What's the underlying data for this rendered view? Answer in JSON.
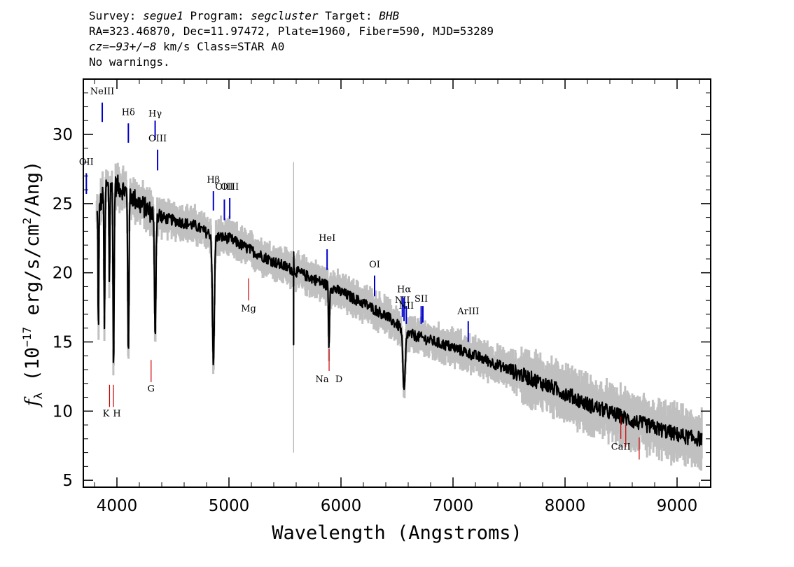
{
  "header": {
    "survey_label": "Survey:",
    "survey": "segue1",
    "program_label": "Program:",
    "program": "segcluster",
    "target_label": "Target:",
    "target": "BHB",
    "coords": "RA=323.46870, Dec=11.97472, Plate=1960, Fiber=590, MJD=53289",
    "cz_prefix": "cz=",
    "cz_value": "−93+/−8",
    "cz_suffix": " km/s Class=STAR A0",
    "warnings": "No warnings."
  },
  "chart_data": {
    "type": "line",
    "xlabel": "Wavelength (Angstroms)",
    "ylabel_main": "f",
    "ylabel_sub": "λ",
    "ylabel_rest_a": " (10",
    "ylabel_exp1": "−17",
    "ylabel_rest_b": " erg/s/cm",
    "ylabel_exp2": "2",
    "ylabel_rest_c": "/Ang)",
    "xlim": [
      3700,
      9300
    ],
    "ylim": [
      4.5,
      34
    ],
    "xticks": [
      4000,
      5000,
      6000,
      7000,
      8000,
      9000
    ],
    "yticks": [
      5,
      10,
      15,
      20,
      25,
      30
    ],
    "colors": {
      "flux": "#000000",
      "error": "#c0c0c0",
      "emission": "#0000cc",
      "absorption": "#cc0000"
    },
    "continuum": [
      [
        3820,
        24.2
      ],
      [
        3900,
        26.2
      ],
      [
        4000,
        26.3
      ],
      [
        4100,
        25.8
      ],
      [
        4200,
        25.0
      ],
      [
        4300,
        24.4
      ],
      [
        4400,
        24.0
      ],
      [
        4500,
        23.8
      ],
      [
        4600,
        23.6
      ],
      [
        4700,
        23.4
      ],
      [
        4800,
        22.9
      ],
      [
        4900,
        22.6
      ],
      [
        5000,
        22.5
      ],
      [
        5200,
        21.6
      ],
      [
        5400,
        20.8
      ],
      [
        5600,
        20.1
      ],
      [
        5800,
        19.4
      ],
      [
        6000,
        18.6
      ],
      [
        6200,
        17.8
      ],
      [
        6400,
        16.9
      ],
      [
        6600,
        15.6
      ],
      [
        6800,
        15.1
      ],
      [
        7000,
        14.6
      ],
      [
        7200,
        14.0
      ],
      [
        7500,
        13.0
      ],
      [
        7800,
        12.0
      ],
      [
        8000,
        11.3
      ],
      [
        8200,
        10.5
      ],
      [
        8400,
        9.9
      ],
      [
        8600,
        9.3
      ],
      [
        8800,
        8.8
      ],
      [
        9000,
        8.3
      ],
      [
        9100,
        8.1
      ],
      [
        9200,
        8.0
      ]
    ],
    "absorption_features": [
      {
        "wave": 3835,
        "depth": 9.0,
        "width": 5
      },
      {
        "wave": 3889,
        "depth": 10.0,
        "width": 6
      },
      {
        "wave": 3933,
        "depth": 7.0,
        "width": 5
      },
      {
        "wave": 3970,
        "depth": 13.0,
        "width": 7
      },
      {
        "wave": 4102,
        "depth": 11.5,
        "width": 8
      },
      {
        "wave": 4341,
        "depth": 9.0,
        "width": 9
      },
      {
        "wave": 4861,
        "depth": 9.5,
        "width": 12
      },
      {
        "wave": 5893,
        "depth": 4.5,
        "width": 6
      },
      {
        "wave": 6563,
        "depth": 4.5,
        "width": 15
      }
    ],
    "spikes": [
      {
        "wave": 5577,
        "low": 14.8,
        "high": 21.5
      }
    ],
    "sky_line": {
      "wave": 5577,
      "low": 7.0,
      "high": 28.0
    },
    "emission_lines": [
      {
        "label": "OII",
        "wave": 3727,
        "y0": 25.7,
        "y1": 27.2,
        "ly": 27.8
      },
      {
        "label": "NeIII",
        "wave": 3869,
        "y0": 30.9,
        "y1": 32.3,
        "ly": 32.9
      },
      {
        "label": "Hδ",
        "wave": 4102,
        "y0": 29.4,
        "y1": 30.8,
        "ly": 31.4
      },
      {
        "label": "Hγ",
        "wave": 4341,
        "y0": 29.6,
        "y1": 31.0,
        "ly": 31.3
      },
      {
        "label": "OIII",
        "wave": 4363,
        "y0": 27.4,
        "y1": 28.9,
        "ly": 29.5
      },
      {
        "label": "Hβ",
        "wave": 4861,
        "y0": 24.5,
        "y1": 25.9,
        "ly": 26.5
      },
      {
        "label": "OIII",
        "wave": 4959,
        "y0": 23.8,
        "y1": 25.3,
        "ly": 26.0
      },
      {
        "label": "OIII",
        "wave": 5007,
        "y0": 23.9,
        "y1": 25.4,
        "ly": 26.0
      },
      {
        "label": "HeI",
        "wave": 5876,
        "y0": 20.2,
        "y1": 21.7,
        "ly": 22.3
      },
      {
        "label": "OI",
        "wave": 6300,
        "y0": 18.3,
        "y1": 19.8,
        "ly": 20.4
      },
      {
        "label": "NII",
        "wave": 6548,
        "y0": 16.8,
        "y1": 18.3,
        "ly": 17.8
      },
      {
        "label": "Hα",
        "wave": 6563,
        "y0": 16.5,
        "y1": 18.2,
        "ly": 18.6
      },
      {
        "label": "NII",
        "wave": 6583,
        "y0": 16.3,
        "y1": 17.6,
        "ly": 17.4
      },
      {
        "label": "SII",
        "wave": 6716,
        "y0": 16.3,
        "y1": 17.6,
        "ly": 17.9
      },
      {
        "label": "SII",
        "wave": 6731,
        "y0": 16.4,
        "y1": 17.6,
        "ly": null
      },
      {
        "label": "ArIII",
        "wave": 7136,
        "y0": 15.0,
        "y1": 16.5,
        "ly": 17.0
      }
    ],
    "absorption_lines": [
      {
        "label": "K",
        "wave": 3934,
        "y0": 10.3,
        "y1": 11.9,
        "ly": 9.6
      },
      {
        "label": "H",
        "wave": 3969,
        "y0": 10.3,
        "y1": 11.9,
        "ly": 9.6
      },
      {
        "label": "G",
        "wave": 4305,
        "y0": 12.1,
        "y1": 13.7,
        "ly": 11.4
      },
      {
        "label": "Mg",
        "wave": 5175,
        "y0": 18.0,
        "y1": 19.6,
        "ly": 17.2
      },
      {
        "label": "Na",
        "wave": 5894,
        "y0": 12.9,
        "y1": 14.5,
        "ly": 12.1
      },
      {
        "label": "D",
        "wave": 5894,
        "y0": null,
        "y1": null,
        "ly": 12.1
      },
      {
        "label": "CaII",
        "wave": 8498,
        "y0": 8.0,
        "y1": 9.6,
        "ly": 7.2
      },
      {
        "label": "CaII",
        "wave": 8542,
        "y0": 7.4,
        "y1": 9.0,
        "ly": null
      },
      {
        "label": "CaII",
        "wave": 8662,
        "y0": 6.5,
        "y1": 8.1,
        "ly": null
      }
    ]
  }
}
